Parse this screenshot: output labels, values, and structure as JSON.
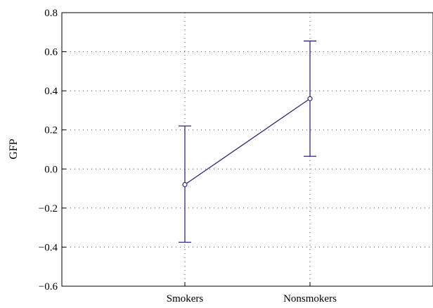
{
  "chart_data": {
    "type": "line",
    "title": "",
    "xlabel": "",
    "ylabel": "GFP",
    "categories": [
      "Smokers",
      "Nonsmokers"
    ],
    "series": [
      {
        "values": [
          -0.08,
          0.36
        ],
        "error_low": [
          -0.375,
          0.065
        ],
        "error_high": [
          0.22,
          0.655
        ],
        "color": "#2b2b7a"
      }
    ],
    "ylim": [
      -0.6,
      0.8
    ],
    "yticks": [
      0.8,
      0.6,
      0.4,
      0.2,
      0.0,
      -0.2,
      -0.4,
      -0.6
    ],
    "ytick_labels": [
      "0.8",
      "0.6",
      "0.4",
      "0.2",
      "0.0",
      "−0.2",
      "−0.4",
      "−0.6"
    ],
    "grid": "dotted",
    "legend": "none"
  }
}
